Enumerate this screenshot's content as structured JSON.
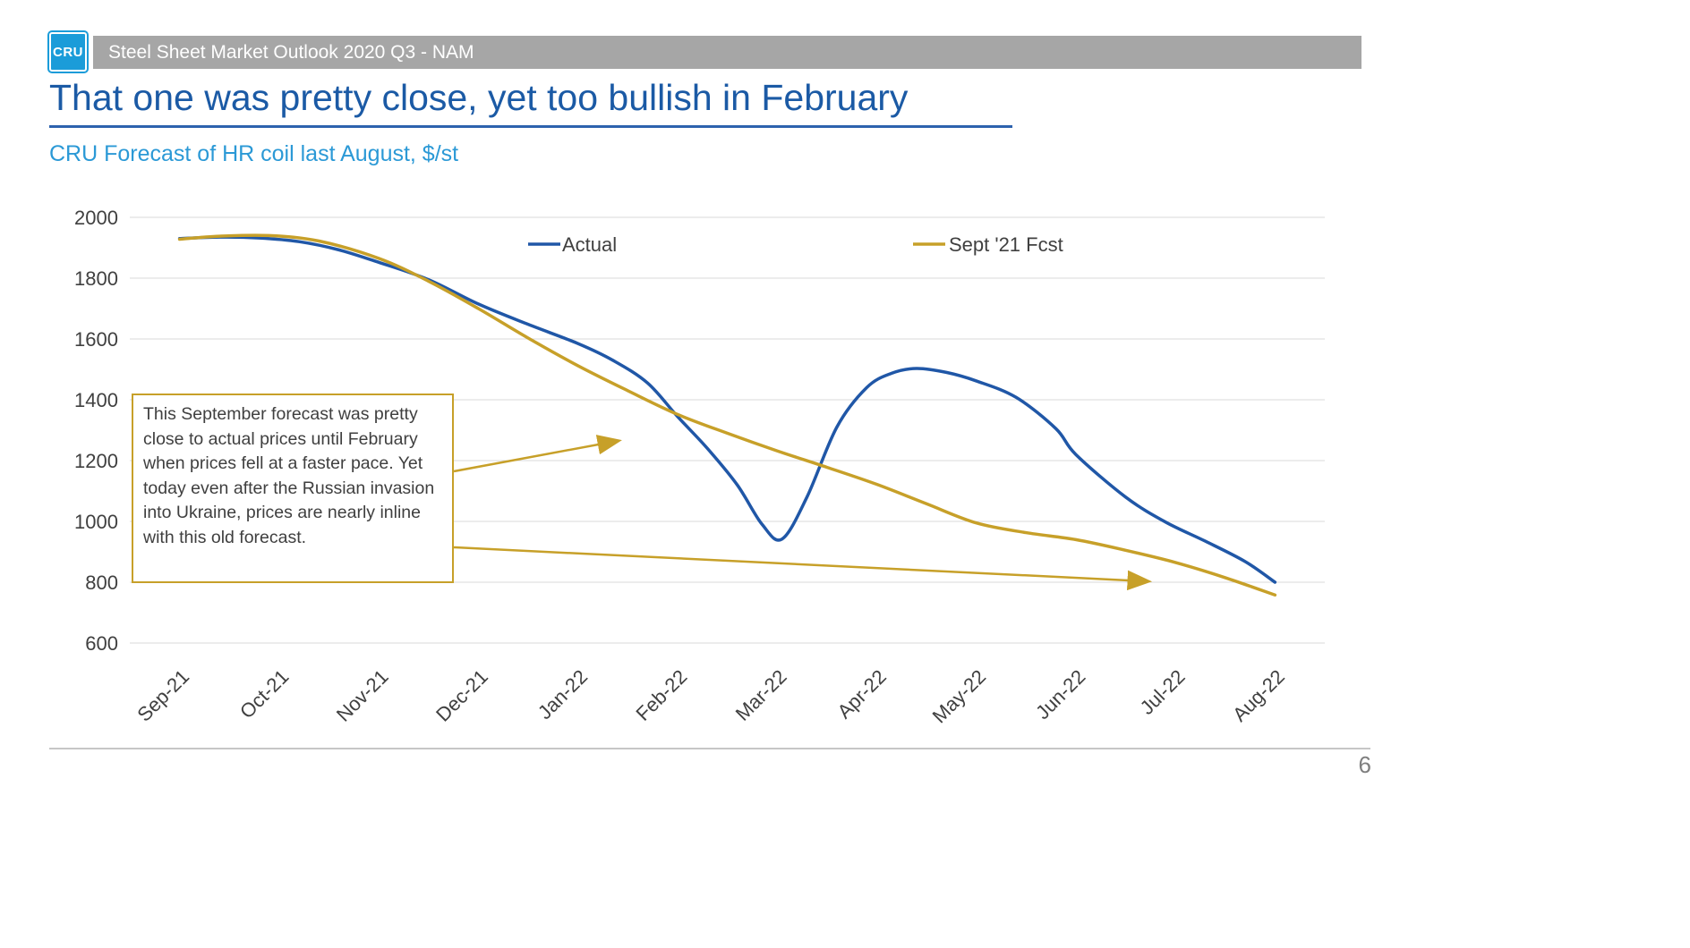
{
  "header": {
    "logo_text": "CRU",
    "bar_text": "Steel Sheet Market Outlook 2020 Q3 - NAM",
    "title": "That one was pretty close, yet too bullish in February"
  },
  "subtitle": "CRU Forecast of HR coil last August, $/st",
  "annotation": {
    "text": "This September forecast was pretty close to actual prices until February when prices fell at a faster pace. Yet today even after the Russian invasion into Ukraine, prices are nearly inline with this old forecast."
  },
  "footer": {
    "page_number": "6"
  },
  "colors": {
    "title_blue": "#1b5aa5",
    "subtitle_blue": "#2b99d6",
    "actual_blue": "#2057a7",
    "forecast_gold": "#c7a029",
    "header_gray": "#a6a6a6",
    "logo_blue": "#1b9cd9",
    "gridline": "#d9d9d9",
    "tick_text": "#404040",
    "page_gray": "#7f7f7f"
  },
  "chart_data": {
    "type": "line",
    "title": "CRU Forecast of HR coil last August, $/st",
    "categories": [
      "Sep-21",
      "Oct-21",
      "Nov-21",
      "Dec-21",
      "Jan-22",
      "Feb-22",
      "Mar-22",
      "Apr-22",
      "May-22",
      "Jun-22",
      "Jul-22",
      "Aug-22"
    ],
    "ylim": [
      600,
      2000
    ],
    "yticks": [
      600,
      800,
      1000,
      1200,
      1400,
      1600,
      1800,
      2000
    ],
    "grid": true,
    "legend_position": "top-inside",
    "series": [
      {
        "name": "Actual",
        "color_key": "actual_blue",
        "monthly_values": [
          1930,
          1930,
          1852,
          1715,
          1585,
          1345,
          950,
          1460,
          1462,
          1220,
          985,
          800
        ],
        "points": [
          [
            0,
            1930
          ],
          [
            0.4,
            1935
          ],
          [
            0.8,
            1932
          ],
          [
            1.2,
            1920
          ],
          [
            1.6,
            1893
          ],
          [
            2,
            1852
          ],
          [
            2.5,
            1795
          ],
          [
            3,
            1715
          ],
          [
            3.5,
            1648
          ],
          [
            4,
            1585
          ],
          [
            4.35,
            1530
          ],
          [
            4.7,
            1455
          ],
          [
            5,
            1345
          ],
          [
            5.3,
            1240
          ],
          [
            5.6,
            1120
          ],
          [
            5.85,
            990
          ],
          [
            6.05,
            942
          ],
          [
            6.3,
            1080
          ],
          [
            6.6,
            1310
          ],
          [
            6.9,
            1440
          ],
          [
            7.15,
            1487
          ],
          [
            7.4,
            1503
          ],
          [
            7.7,
            1490
          ],
          [
            8,
            1462
          ],
          [
            8.4,
            1408
          ],
          [
            8.8,
            1305
          ],
          [
            9,
            1220
          ],
          [
            9.5,
            1080
          ],
          [
            9.9,
            998
          ],
          [
            10.3,
            935
          ],
          [
            10.7,
            868
          ],
          [
            11,
            800
          ]
        ]
      },
      {
        "name": "Sept '21 Fcst",
        "color_key": "forecast_gold",
        "monthly_values": [
          1928,
          1940,
          1865,
          1700,
          1512,
          1352,
          1232,
          1122,
          995,
          940,
          865,
          758
        ],
        "points": [
          [
            0,
            1928
          ],
          [
            0.4,
            1938
          ],
          [
            0.9,
            1940
          ],
          [
            1.4,
            1922
          ],
          [
            2,
            1865
          ],
          [
            2.5,
            1790
          ],
          [
            3,
            1700
          ],
          [
            3.5,
            1603
          ],
          [
            4,
            1512
          ],
          [
            4.5,
            1430
          ],
          [
            5,
            1352
          ],
          [
            5.5,
            1290
          ],
          [
            6,
            1232
          ],
          [
            6.5,
            1178
          ],
          [
            7,
            1122
          ],
          [
            7.5,
            1058
          ],
          [
            8,
            995
          ],
          [
            8.5,
            963
          ],
          [
            9,
            940
          ],
          [
            9.5,
            905
          ],
          [
            10,
            865
          ],
          [
            10.5,
            815
          ],
          [
            11,
            758
          ]
        ]
      }
    ],
    "annotation_arrows": [
      {
        "from": [
          507,
          527
        ],
        "to": [
          690,
          493
        ]
      },
      {
        "from": [
          507,
          612
        ],
        "to": [
          1282,
          650
        ]
      }
    ]
  }
}
